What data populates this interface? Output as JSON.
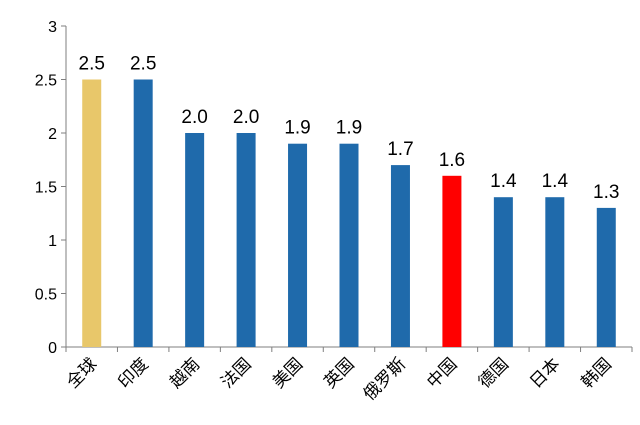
{
  "chart_data": {
    "type": "bar",
    "title": "",
    "xlabel": "",
    "ylabel": "",
    "categories": [
      "全球",
      "印度",
      "越南",
      "法国",
      "美国",
      "英国",
      "俄罗斯",
      "中国",
      "德国",
      "日本",
      "韩国"
    ],
    "values": [
      2.5,
      2.5,
      2.0,
      2.0,
      1.9,
      1.9,
      1.7,
      1.6,
      1.4,
      1.4,
      1.3
    ],
    "value_labels": [
      "2.5",
      "2.5",
      "2.0",
      "2.0",
      "1.9",
      "1.9",
      "1.7",
      "1.6",
      "1.4",
      "1.4",
      "1.3"
    ],
    "bar_colors": [
      "#E8C76A",
      "#1F6AAB",
      "#1F6AAB",
      "#1F6AAB",
      "#1F6AAB",
      "#1F6AAB",
      "#1F6AAB",
      "#FF0000",
      "#1F6AAB",
      "#1F6AAB",
      "#1F6AAB"
    ],
    "ylim": [
      0,
      3
    ],
    "yticks": [
      "0",
      "0.5",
      "1",
      "1.5",
      "2",
      "2.5",
      "3"
    ],
    "grid": false,
    "legend": "none"
  }
}
